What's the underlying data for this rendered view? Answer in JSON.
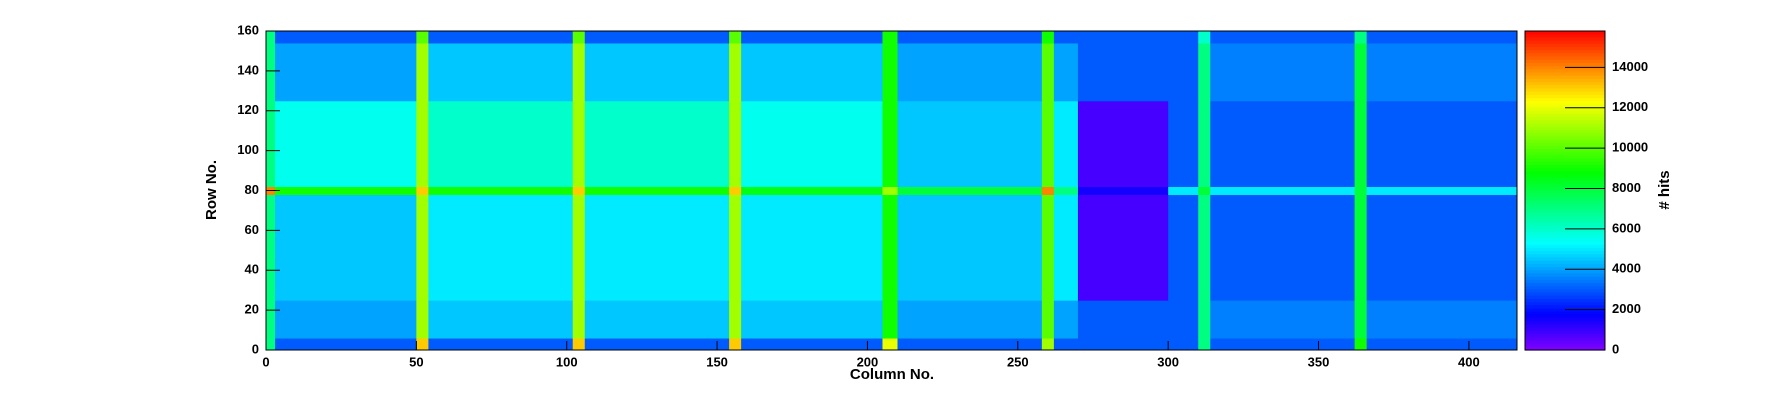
{
  "chart_data": {
    "type": "heatmap",
    "x_label": "Column No.",
    "y_label": "Row No.",
    "z_label": "# hits",
    "xbins": [
      0,
      3,
      50,
      54,
      102,
      106,
      154,
      158,
      205,
      210,
      258,
      262,
      270,
      300,
      310,
      314,
      362,
      366,
      416
    ],
    "ybins": [
      0,
      6,
      25,
      78,
      82,
      125,
      154,
      160
    ],
    "values": [
      [
        7000,
        3000,
        13000,
        3000,
        13000,
        3000,
        13000,
        3000,
        12000,
        3000,
        11000,
        3000,
        3000,
        3000,
        7000,
        3000,
        9000,
        3000
      ],
      [
        7000,
        4000,
        11000,
        4500,
        11000,
        4500,
        11000,
        4500,
        9000,
        4000,
        10000,
        4000,
        3000,
        3000,
        7000,
        3500,
        8000,
        3500
      ],
      [
        7000,
        4500,
        11000,
        5000,
        11000,
        5000,
        11000,
        5000,
        9000,
        4500,
        10000,
        5000,
        800,
        3000,
        7000,
        3000,
        8000,
        3000
      ],
      [
        14000,
        9000,
        13000,
        9000,
        13000,
        9000,
        13000,
        8500,
        11000,
        8000,
        14000,
        7000,
        1500,
        5000,
        8000,
        5000,
        8000,
        5000
      ],
      [
        7000,
        5500,
        11000,
        6000,
        11000,
        6000,
        11000,
        5500,
        9000,
        4500,
        10000,
        5000,
        800,
        3000,
        7000,
        3000,
        8000,
        3000
      ],
      [
        7000,
        4000,
        11000,
        4500,
        11000,
        4500,
        11000,
        4500,
        9000,
        4000,
        10000,
        4000,
        3000,
        3000,
        7000,
        3500,
        8000,
        3500
      ],
      [
        7000,
        3000,
        10000,
        3000,
        10000,
        3000,
        10000,
        3000,
        9000,
        3000,
        9000,
        3000,
        3000,
        3000,
        6000,
        3000,
        7000,
        3000
      ]
    ],
    "xlim": [
      0,
      416
    ],
    "xticks": [
      0,
      50,
      100,
      150,
      200,
      250,
      300,
      350,
      400
    ],
    "ylim": [
      0,
      160
    ],
    "yticks": [
      0,
      20,
      40,
      60,
      80,
      100,
      120,
      140,
      160
    ],
    "zlim": [
      0,
      15800
    ],
    "zticks": [
      0,
      2000,
      4000,
      6000,
      8000,
      10000,
      12000,
      14000
    ],
    "colormap": "rainbow"
  }
}
